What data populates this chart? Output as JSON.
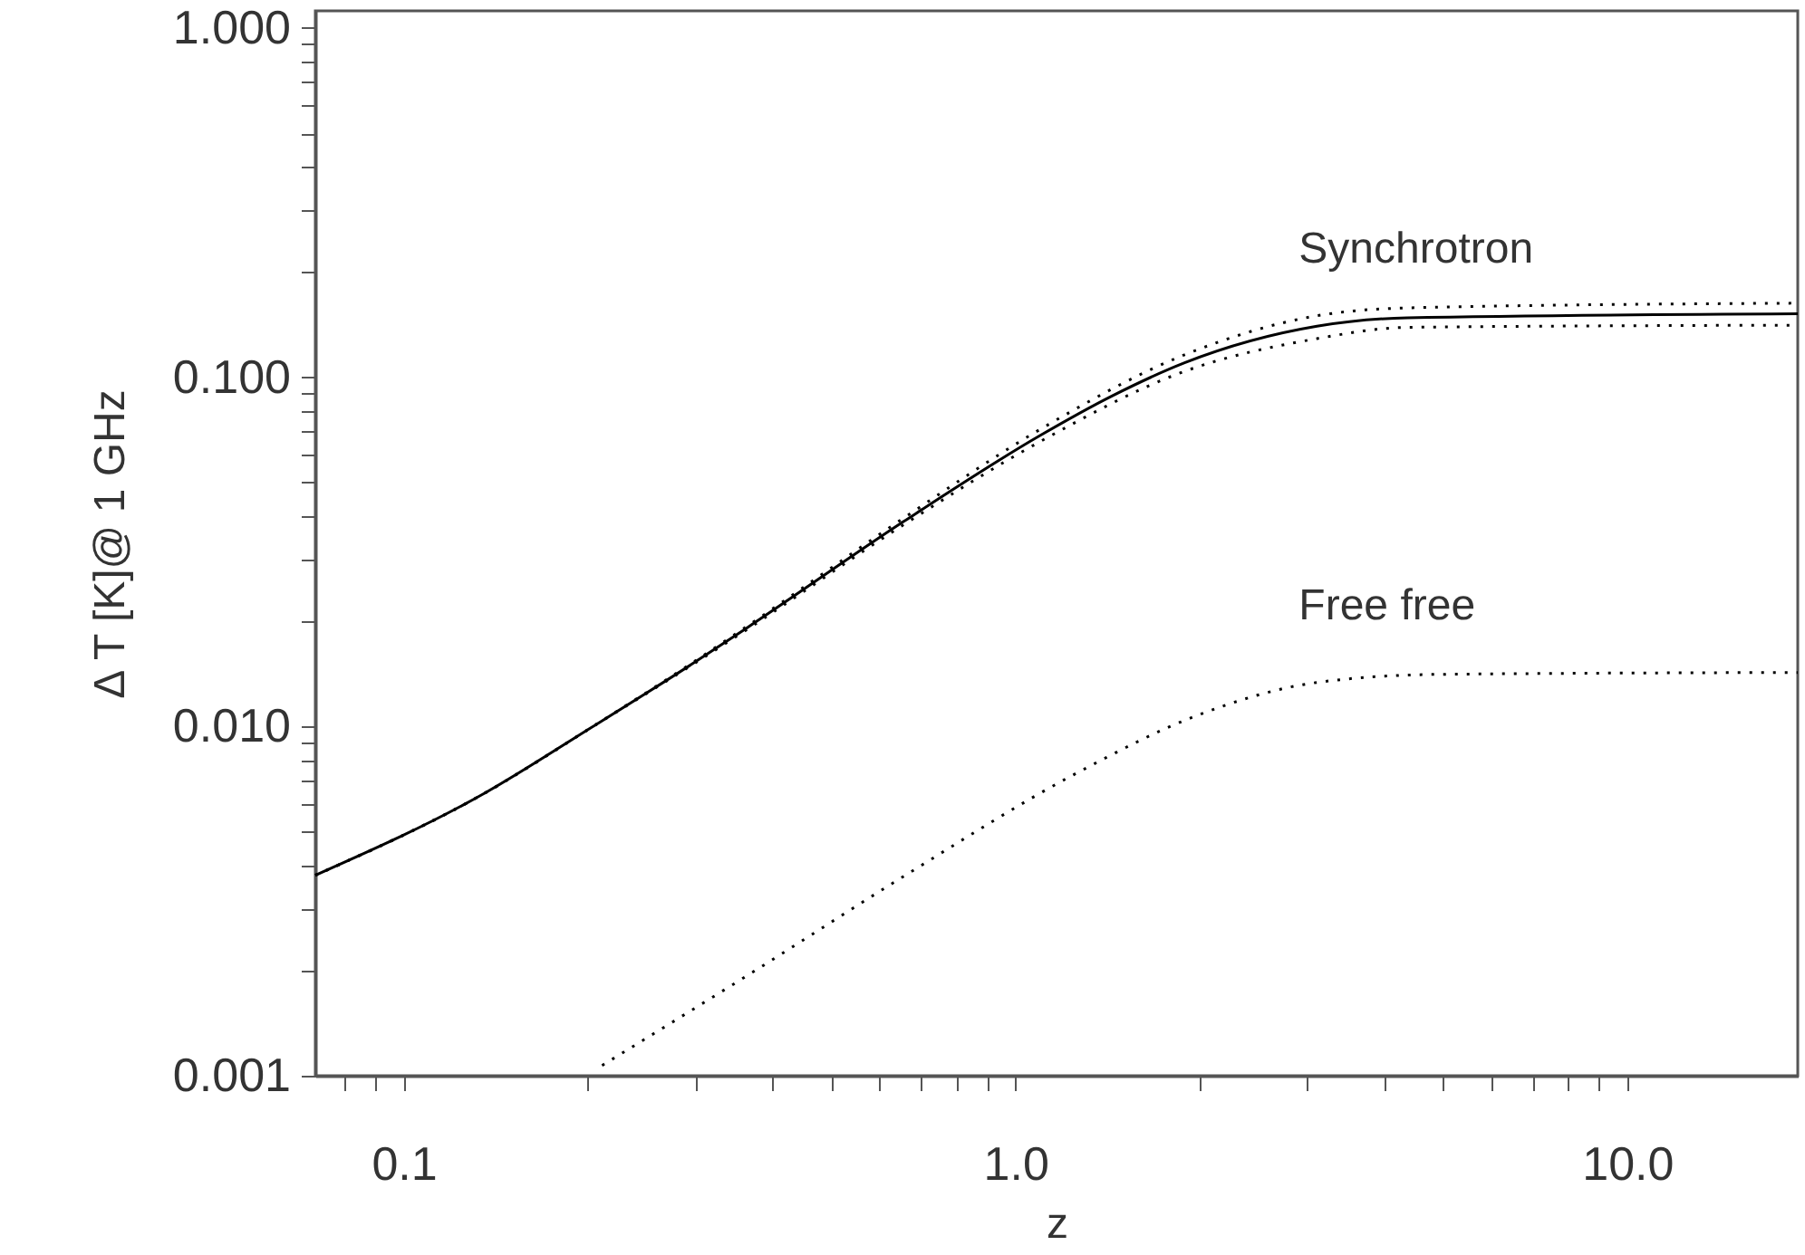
{
  "chart_data": {
    "type": "line",
    "xlabel": "z",
    "ylabel": "Δ T [K]@ 1 GHz",
    "log": "xy",
    "xlim": [
      0.0717,
      19
    ],
    "ylim": [
      0.001,
      1.12
    ],
    "xticks": [
      {
        "value": 0.08,
        "label": null
      },
      {
        "value": 0.09,
        "label": null
      },
      0.1,
      {
        "value": 0.2,
        "label": null
      },
      {
        "value": 0.3,
        "label": null
      },
      {
        "value": 0.4,
        "label": null
      },
      {
        "value": 0.5,
        "label": null
      },
      {
        "value": 0.6,
        "label": null
      },
      {
        "value": 0.7,
        "label": null
      },
      {
        "value": 0.8,
        "label": null
      },
      {
        "value": 0.9,
        "label": null
      },
      {
        "value": 1,
        "label": "1.0"
      },
      {
        "value": 2,
        "label": null
      },
      {
        "value": 3,
        "label": null
      },
      {
        "value": 4,
        "label": null
      },
      {
        "value": 5,
        "label": null
      },
      {
        "value": 6,
        "label": null
      },
      {
        "value": 7,
        "label": null
      },
      {
        "value": 8,
        "label": null
      },
      {
        "value": 9,
        "label": null
      },
      {
        "value": 10,
        "label": "10.0"
      }
    ],
    "yticks": [
      {
        "value": 0.001,
        "label": "0.001"
      },
      {
        "value": 0.002,
        "label": null
      },
      {
        "value": 0.003,
        "label": null
      },
      {
        "value": 0.004,
        "label": null
      },
      {
        "value": 0.005,
        "label": null
      },
      {
        "value": 0.006,
        "label": null
      },
      {
        "value": 0.007,
        "label": null
      },
      {
        "value": 0.008,
        "label": null
      },
      {
        "value": 0.009,
        "label": null
      },
      {
        "value": 0.01,
        "label": "0.010"
      },
      {
        "value": 0.02,
        "label": null
      },
      {
        "value": 0.03,
        "label": null
      },
      {
        "value": 0.04,
        "label": null
      },
      {
        "value": 0.05,
        "label": null
      },
      {
        "value": 0.06,
        "label": null
      },
      {
        "value": 0.07,
        "label": null
      },
      {
        "value": 0.08,
        "label": null
      },
      {
        "value": 0.09,
        "label": null
      },
      {
        "value": 0.1,
        "label": "0.100"
      },
      {
        "value": 0.2,
        "label": null
      },
      {
        "value": 0.3,
        "label": null
      },
      {
        "value": 0.4,
        "label": null
      },
      {
        "value": 0.5,
        "label": null
      },
      {
        "value": 0.6,
        "label": null
      },
      {
        "value": 0.7,
        "label": null
      },
      {
        "value": 0.8,
        "label": null
      },
      {
        "value": 0.9,
        "label": null
      },
      {
        "value": 1,
        "label": "1.000"
      }
    ],
    "series": [
      {
        "name": "Synchrotron",
        "color": "#000000",
        "line_style": "solid",
        "x": [
          0.0717,
          0.136,
          0.202,
          0.296,
          0.363,
          0.656,
          1.1,
          1.44,
          1.89,
          3.11,
          4.37,
          19
        ],
        "values": [
          0.00375,
          0.00646,
          0.0099,
          0.0151,
          0.0191,
          0.0386,
          0.0683,
          0.0885,
          0.11,
          0.14,
          0.148,
          0.152
        ]
      },
      {
        "color": "#000000",
        "line_style": "dotted",
        "x": [
          0.0717,
          0.136,
          0.202,
          0.296,
          0.363,
          0.656,
          1.1,
          1.89,
          3.11,
          4.37,
          19
        ],
        "values": [
          0.00375,
          0.00646,
          0.0099,
          0.0152,
          0.0193,
          0.0395,
          0.0711,
          0.116,
          0.15,
          0.158,
          0.163
        ]
      },
      {
        "color": "#000000",
        "line_style": "dotted",
        "x": [
          0.0717,
          0.136,
          0.202,
          0.296,
          0.363,
          0.656,
          1.1,
          1.89,
          3.11,
          4.37,
          19
        ],
        "values": [
          0.00375,
          0.00646,
          0.0099,
          0.015,
          0.0189,
          0.0378,
          0.0656,
          0.104,
          0.129,
          0.139,
          0.141
        ]
      },
      {
        "name": "Free free",
        "color": "#000000",
        "line_style": "dotted",
        "x": [
          0.211,
          0.372,
          0.656,
          1.26,
          1.98,
          3.11,
          4.9,
          19
        ],
        "values": [
          0.00107,
          0.00198,
          0.00372,
          0.00736,
          0.01075,
          0.01337,
          0.0141,
          0.01428
        ]
      }
    ]
  }
}
